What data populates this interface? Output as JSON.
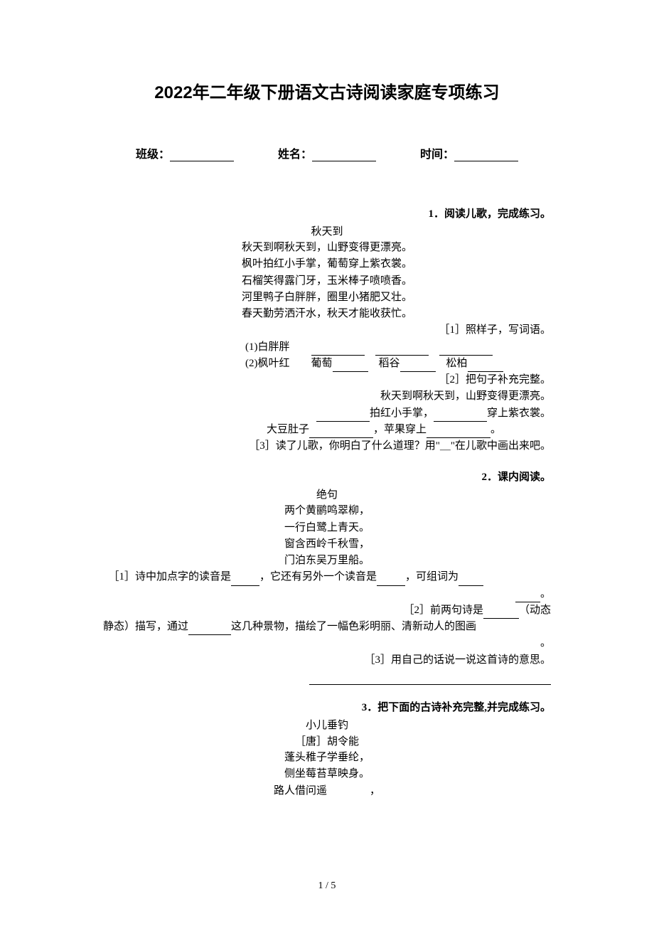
{
  "title": "2022年二年级下册语文古诗阅读家庭专项练习",
  "form": {
    "class_label": "班级：",
    "name_label": "姓名：",
    "time_label": "时间："
  },
  "q1": {
    "heading": "1．阅读儿歌，完成练习。",
    "poem_title": "秋天到",
    "lines": [
      "秋天到啊秋天到，山野变得更漂亮。",
      "枫叶拍红小手掌，葡萄穿上紫衣裳。",
      "石榴笑得露门牙，玉米棒子喷喷香。",
      "河里鸭子白胖胖，圈里小猪肥又壮。",
      "春天勤劳洒汗水，秋天才能收获忙。"
    ],
    "sub1_label": "［1］照样子，写词语。",
    "sub1_a": "(1)白胖胖",
    "sub1_b_prefix": "(2)枫叶红　　葡萄",
    "sub1_b_word2": "　稻谷",
    "sub1_b_word3": "　松柏",
    "sub2_label": "［2］把句子补充完整。",
    "sub2_line1": "秋天到啊秋天到，山野变得更漂亮。",
    "sub2_line2_mid": "拍红小手掌，",
    "sub2_line2_tail": "穿上紫衣裳。",
    "sub2_line3_a": "大豆肚子",
    "sub2_line3_b": "，苹果穿上",
    "sub2_line3_tail": "。",
    "sub3": "［3］读了儿歌，你明白了什么道理？用\"＿\"在儿歌中画出来吧。"
  },
  "q2": {
    "heading": "2．课内阅读。",
    "poem_title": "绝句",
    "lines": [
      "两个黄鹂鸣翠柳，",
      "一行白鹭上青天。",
      "窗含西岭千秋雪，",
      "门泊东吴万里船。"
    ],
    "sub1_a": "［1］诗中加点字的读音是",
    "sub1_b": "，它还有另外一个读音是",
    "sub1_c": "，可组词为",
    "sub1_tail": "。",
    "sub2_a": "［2］前两句诗是",
    "sub2_b": "（动态",
    "sub2_line2_a": "静态）描写，通过",
    "sub2_line2_b": "这几种景物，描绘了一幅色彩明丽、清新动人的图画",
    "sub2_tail": "。",
    "sub3": "［3］用自己的话说一说这首诗的意思。"
  },
  "q3": {
    "heading": "3．把下面的古诗补充完整,并完成练习。",
    "poem_title": "小儿垂钓",
    "author": "［唐］胡令能",
    "lines": [
      "蓬头稚子学垂纶，",
      "侧坐莓苔草映身。",
      "路人借问遥　　　　，"
    ]
  },
  "page_num": "1 / 5",
  "colors": {
    "text": "#000000",
    "background": "#ffffff"
  }
}
